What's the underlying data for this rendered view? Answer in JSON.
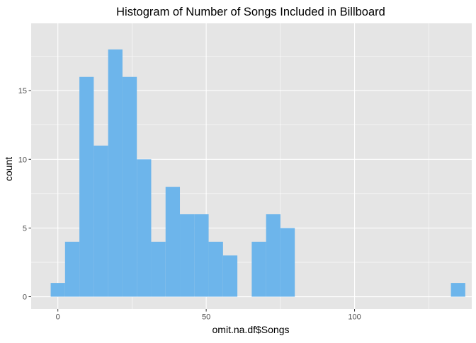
{
  "chart_data": {
    "type": "histogram",
    "title": "Histogram of Number of Songs Included in Billboard",
    "xlabel": "omit.na.df$Songs",
    "ylabel": "count",
    "xlim": [
      -9,
      139.5
    ],
    "ylim": [
      -0.9,
      19.9
    ],
    "x_ticks": [
      0,
      50,
      100
    ],
    "y_ticks": [
      0,
      5,
      10,
      15
    ],
    "bin_width": 4.84,
    "bins": [
      {
        "x0": -2.42,
        "x1": 2.42,
        "count": 1
      },
      {
        "x0": 2.42,
        "x1": 7.26,
        "count": 4
      },
      {
        "x0": 7.26,
        "x1": 12.1,
        "count": 16
      },
      {
        "x0": 12.1,
        "x1": 16.94,
        "count": 11
      },
      {
        "x0": 16.94,
        "x1": 21.78,
        "count": 18
      },
      {
        "x0": 21.78,
        "x1": 26.62,
        "count": 16
      },
      {
        "x0": 26.62,
        "x1": 31.46,
        "count": 10
      },
      {
        "x0": 31.46,
        "x1": 36.3,
        "count": 4
      },
      {
        "x0": 36.3,
        "x1": 41.14,
        "count": 8
      },
      {
        "x0": 41.14,
        "x1": 45.98,
        "count": 6
      },
      {
        "x0": 45.98,
        "x1": 50.82,
        "count": 6
      },
      {
        "x0": 50.82,
        "x1": 55.66,
        "count": 4
      },
      {
        "x0": 55.66,
        "x1": 60.5,
        "count": 3
      },
      {
        "x0": 60.5,
        "x1": 65.34,
        "count": 0
      },
      {
        "x0": 65.34,
        "x1": 70.18,
        "count": 4
      },
      {
        "x0": 70.18,
        "x1": 75.02,
        "count": 6
      },
      {
        "x0": 75.02,
        "x1": 79.86,
        "count": 5
      },
      {
        "x0": 132.48,
        "x1": 137.32,
        "count": 1
      }
    ],
    "grid": true,
    "colors": {
      "bar_fill": "#6db5eb",
      "panel_background": "#e5e5e5",
      "grid_major": "#ffffff",
      "tick_text": "#4d4d4d"
    }
  }
}
